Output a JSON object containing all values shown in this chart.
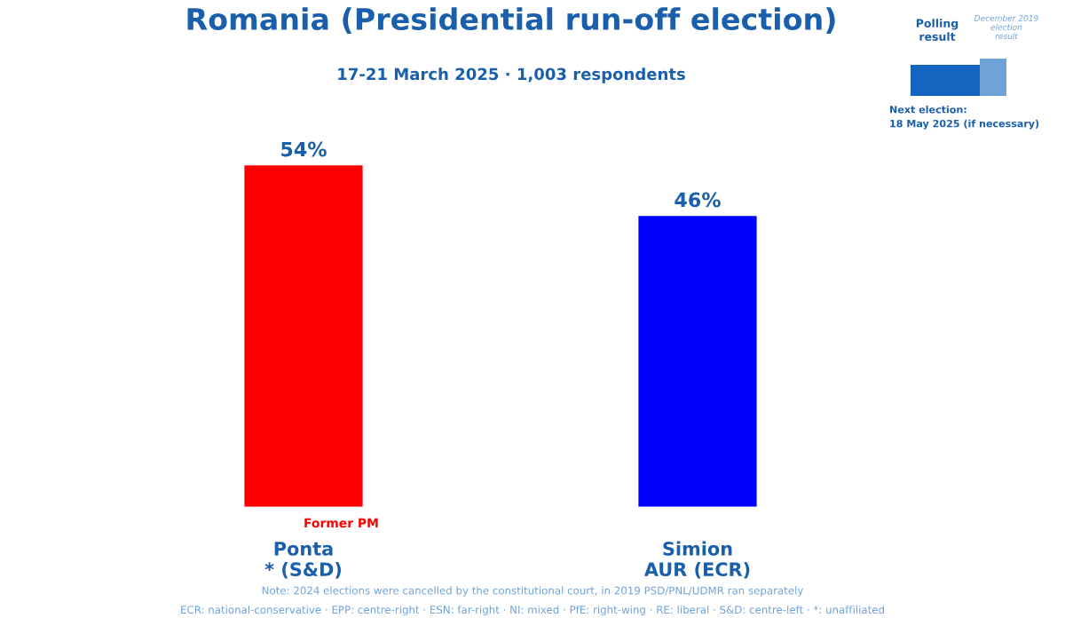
{
  "chart_data": {
    "type": "bar",
    "title": "Romania (Presidential run-off election)",
    "subtitle": "17-21 March 2025 · 1,003 respondents",
    "categories": [
      "Ponta\n* (S&D)",
      "Simion\nAUR (ECR)"
    ],
    "values": [
      54,
      46
    ],
    "colors": [
      "#ff0000",
      "#0000ff"
    ],
    "value_labels": [
      "54%",
      "46%"
    ],
    "annotations": [
      "Former PM",
      "Polling result",
      "December 2019 election result",
      "Next election:\n18 May 2025 (if necessary)",
      "Note: 2024 elections were cancelled by the constitutional court, in 2019 PSD/PNL/UDMR ran separately",
      "ECR: national-conservative · EPP: centre-right · ESN: far-right · NI: mixed · PfE: right-wing · RE: liberal · S&D: centre-left · *: unaffiliated"
    ],
    "grid": false,
    "legend": false
  }
}
